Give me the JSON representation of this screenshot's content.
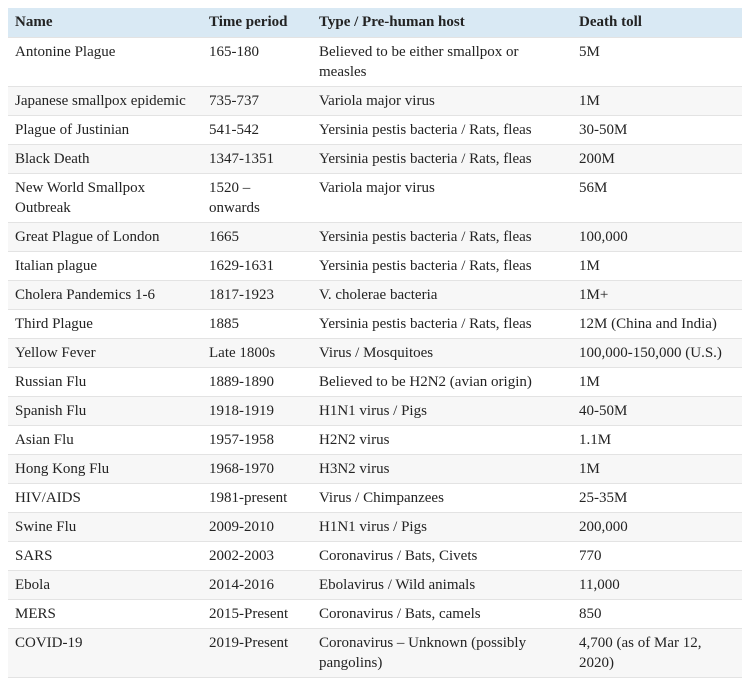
{
  "table": {
    "columns": [
      "Name",
      "Time period",
      "Type / Pre-human host",
      "Death toll"
    ],
    "rows": [
      {
        "name": "Antonine Plague",
        "period": "165-180",
        "type": "Believed to be either smallpox or measles",
        "toll": "5M"
      },
      {
        "name": "Japanese smallpox epidemic",
        "period": "735-737",
        "type": "Variola major virus",
        "toll": "1M"
      },
      {
        "name": "Plague of Justinian",
        "period": "541-542",
        "type": "Yersinia pestis bacteria / Rats, fleas",
        "toll": "30-50M"
      },
      {
        "name": "Black Death",
        "period": "1347-1351",
        "type": "Yersinia pestis bacteria / Rats, fleas",
        "toll": "200M"
      },
      {
        "name": "New World Smallpox Outbreak",
        "period": "1520 – onwards",
        "type": "Variola major virus",
        "toll": "56M"
      },
      {
        "name": "Great Plague of London",
        "period": "1665",
        "type": "Yersinia pestis bacteria / Rats, fleas",
        "toll": "100,000"
      },
      {
        "name": "Italian plague",
        "period": "1629-1631",
        "type": "Yersinia pestis bacteria / Rats, fleas",
        "toll": "1M"
      },
      {
        "name": "Cholera Pandemics 1-6",
        "period": "1817-1923",
        "type": "V. cholerae bacteria",
        "toll": "1M+"
      },
      {
        "name": "Third Plague",
        "period": "1885",
        "type": "Yersinia pestis bacteria / Rats, fleas",
        "toll": "12M (China and India)"
      },
      {
        "name": "Yellow Fever",
        "period": "Late 1800s",
        "type": "Virus / Mosquitoes",
        "toll": "100,000-150,000 (U.S.)"
      },
      {
        "name": "Russian Flu",
        "period": "1889-1890",
        "type": "Believed to be H2N2 (avian origin)",
        "toll": "1M"
      },
      {
        "name": "Spanish Flu",
        "period": "1918-1919",
        "type": "H1N1 virus / Pigs",
        "toll": "40-50M"
      },
      {
        "name": "Asian Flu",
        "period": "1957-1958",
        "type": "H2N2 virus",
        "toll": "1.1M"
      },
      {
        "name": "Hong Kong Flu",
        "period": "1968-1970",
        "type": "H3N2 virus",
        "toll": "1M"
      },
      {
        "name": "HIV/AIDS",
        "period": "1981-present",
        "type": "Virus / Chimpanzees",
        "toll": "25-35M"
      },
      {
        "name": "Swine Flu",
        "period": "2009-2010",
        "type": "H1N1 virus / Pigs",
        "toll": "200,000"
      },
      {
        "name": "SARS",
        "period": "2002-2003",
        "type": "Coronavirus / Bats, Civets",
        "toll": "770"
      },
      {
        "name": "Ebola",
        "period": "2014-2016",
        "type": "Ebolavirus / Wild animals",
        "toll": "11,000"
      },
      {
        "name": "MERS",
        "period": "2015-Present",
        "type": "Coronavirus / Bats, camels",
        "toll": "850"
      },
      {
        "name": "COVID-19",
        "period": "2019-Present",
        "type": "Coronavirus – Unknown (possibly pangolins)",
        "toll": "4,700 (as of Mar 12, 2020)"
      }
    ],
    "colors": {
      "header_bg": "#d9e9f4",
      "stripe_bg": "#f7f7f7",
      "border": "#e3e3e3",
      "text": "#232323"
    }
  }
}
